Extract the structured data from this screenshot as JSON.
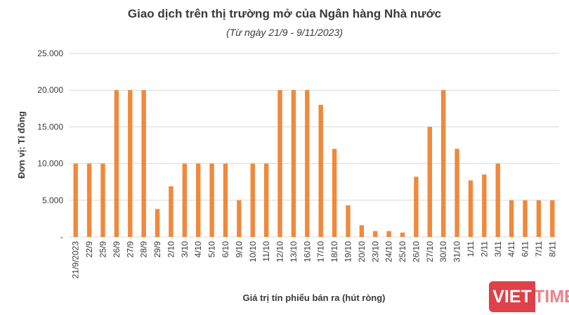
{
  "chart_data": {
    "type": "bar",
    "title": "Giao dịch trên thị trường mở của Ngân hàng Nhà nước",
    "subtitle": "(Từ ngày 21/9 - 9/11/2023)",
    "xlabel": "Giá trị tín phiếu bán ra (hút ròng)",
    "ylabel": "Đơn vị: Tỉ đồng",
    "ylim": [
      0,
      25000
    ],
    "yticks": [
      0,
      5000,
      10000,
      15000,
      20000,
      25000
    ],
    "ytick_labels": [
      "-",
      "5.000",
      "10.000",
      "15.000",
      "20.000",
      "25.000"
    ],
    "grid": true,
    "bar_color": "#f0893b",
    "categories": [
      "21/9/2023",
      "22/9",
      "25/9",
      "26/9",
      "27/9",
      "28/9",
      "29/9",
      "2/10",
      "3/10",
      "4/10",
      "5/10",
      "6/10",
      "9/10",
      "10/10",
      "11/10",
      "12/10",
      "13/10",
      "16/10",
      "17/10",
      "18/10",
      "19/10",
      "20/10",
      "23/10",
      "24/10",
      "25/10",
      "26/10",
      "27/10",
      "30/10",
      "31/10",
      "1/11",
      "2/11",
      "3/11",
      "4/11",
      "6/11",
      "7/11",
      "8/11"
    ],
    "values": [
      10000,
      10000,
      10000,
      20000,
      20000,
      20000,
      3800,
      6900,
      10000,
      10000,
      10000,
      10000,
      5000,
      10000,
      10000,
      20000,
      20000,
      20000,
      18000,
      12000,
      4300,
      1600,
      800,
      800,
      600,
      8200,
      15000,
      20000,
      12000,
      7700,
      8500,
      10000,
      5000,
      5000,
      5000,
      5000
    ]
  },
  "watermark": {
    "part1": "VIET",
    "part2": "TIMES"
  }
}
